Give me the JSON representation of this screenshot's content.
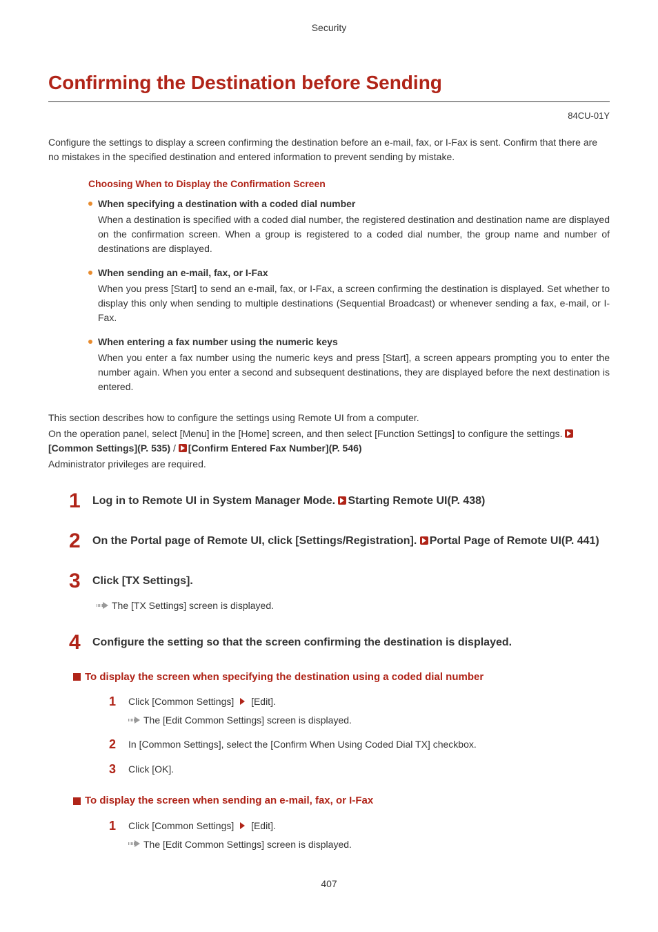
{
  "breadcrumb": "Security",
  "title": "Confirming the Destination before Sending",
  "doc_code": "84CU-01Y",
  "intro": "Configure the settings to display a screen confirming the destination before an e-mail, fax, or I-Fax is sent. Confirm that there are no mistakes in the specified destination and entered information to prevent sending by mistake.",
  "choose_title": "Choosing When to Display the Confirmation Screen",
  "bullets": [
    {
      "title": "When specifying a destination with a coded dial number",
      "body": "When a destination is specified with a coded dial number, the registered destination and destination name are displayed on the confirmation screen. When a group is registered to a coded dial number, the group name and number of destinations are displayed."
    },
    {
      "title": "When sending an e-mail, fax, or I-Fax",
      "body": "When you press [Start] to send an e-mail, fax, or I-Fax, a screen confirming the destination is displayed. Set whether to display this only when sending to multiple destinations (Sequential Broadcast) or whenever sending a fax, e-mail, or I-Fax."
    },
    {
      "title": "When entering a fax number using the numeric keys",
      "body": "When you enter a fax number using the numeric keys and press [Start], a screen appears prompting you to enter the number again. When you enter a second and subsequent destinations, they are displayed before the next destination is entered."
    }
  ],
  "settings_preface": {
    "line1": "This section describes how to configure the settings using Remote UI from a computer.",
    "line2_a": "On the operation panel, select [Menu] in the [Home] screen, and then select [Function Settings] to configure the settings. ",
    "ref1": "[Common Settings](P. 535)",
    "sep": "  /  ",
    "ref2": "[Confirm Entered Fax Number](P. 546)",
    "line3": "Administrator privileges are required."
  },
  "steps": [
    {
      "n": "1",
      "title_a": "Log in to Remote UI in System Manager Mode. ",
      "link": "Starting Remote UI(P. 438)"
    },
    {
      "n": "2",
      "title_a": "On the Portal page of Remote UI, click [Settings/Registration]. ",
      "link": "Portal Page of Remote UI(P. 441)"
    },
    {
      "n": "3",
      "title_a": "Click [TX Settings].",
      "link": "",
      "result": "The [TX Settings] screen is displayed."
    },
    {
      "n": "4",
      "title_a": "Configure the setting so that the screen confirming the destination is displayed.",
      "link": ""
    }
  ],
  "subsections": [
    {
      "title": "To display the screen when specifying the destination using a coded dial number",
      "ol": [
        {
          "n": "1",
          "text_a": "Click [Common Settings]",
          "text_b": "[Edit].",
          "result": "The [Edit Common Settings] screen is displayed."
        },
        {
          "n": "2",
          "text_a": "In [Common Settings], select the [Confirm When Using Coded Dial TX] checkbox."
        },
        {
          "n": "3",
          "text_a": "Click [OK]."
        }
      ]
    },
    {
      "title": "To display the screen when sending an e-mail, fax, or I-Fax",
      "ol": [
        {
          "n": "1",
          "text_a": "Click [Common Settings]",
          "text_b": "[Edit].",
          "result": "The [Edit Common Settings] screen is displayed."
        }
      ]
    }
  ],
  "page_number": "407"
}
